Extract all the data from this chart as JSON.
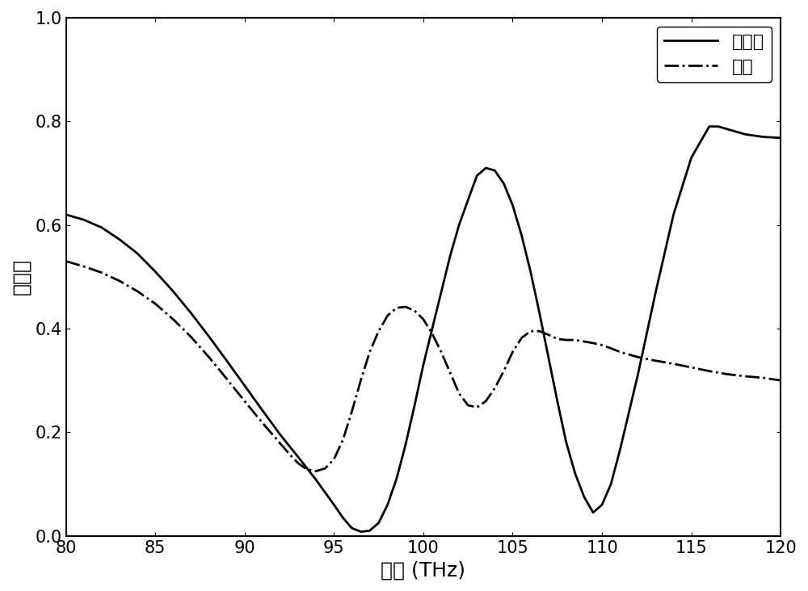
{
  "title": "",
  "xlabel": "频率 (THz)",
  "ylabel": "透过率",
  "xlim": [
    80,
    120
  ],
  "ylim": [
    0,
    1.0
  ],
  "xticks": [
    80,
    85,
    90,
    95,
    100,
    105,
    110,
    115,
    120
  ],
  "yticks": [
    0.0,
    0.2,
    0.4,
    0.6,
    0.8,
    1.0
  ],
  "legend_labels": [
    "非晶态",
    "晶态"
  ],
  "line1_style": "-",
  "line2_style": "-.",
  "line_color": "#000000",
  "line_width": 2.0,
  "background_color": "#ffffff",
  "amorphous_x": [
    80,
    81,
    82,
    83,
    84,
    85,
    86,
    87,
    88,
    89,
    90,
    91,
    92,
    93,
    94,
    95,
    95.5,
    96,
    96.5,
    97,
    97.5,
    98,
    98.5,
    99,
    99.5,
    100,
    100.5,
    101,
    101.5,
    102,
    102.5,
    103,
    103.5,
    104,
    104.5,
    105,
    105.5,
    106,
    106.5,
    107,
    107.5,
    108,
    108.5,
    109,
    109.5,
    110,
    110.5,
    111,
    112,
    113,
    114,
    115,
    116,
    116.5,
    117,
    118,
    119,
    120
  ],
  "amorphous_y": [
    0.62,
    0.61,
    0.595,
    0.572,
    0.545,
    0.51,
    0.472,
    0.43,
    0.385,
    0.338,
    0.29,
    0.242,
    0.195,
    0.152,
    0.108,
    0.06,
    0.035,
    0.015,
    0.008,
    0.01,
    0.025,
    0.06,
    0.11,
    0.175,
    0.25,
    0.33,
    0.4,
    0.47,
    0.54,
    0.6,
    0.648,
    0.695,
    0.71,
    0.705,
    0.68,
    0.638,
    0.58,
    0.51,
    0.43,
    0.345,
    0.26,
    0.18,
    0.12,
    0.075,
    0.045,
    0.06,
    0.1,
    0.165,
    0.31,
    0.47,
    0.62,
    0.73,
    0.79,
    0.79,
    0.785,
    0.775,
    0.77,
    0.768
  ],
  "crystalline_x": [
    80,
    81,
    82,
    83,
    84,
    85,
    86,
    87,
    88,
    89,
    90,
    91,
    92,
    92.5,
    93,
    93.5,
    94,
    94.5,
    95,
    95.5,
    96,
    96.5,
    97,
    97.5,
    98,
    98.5,
    99,
    99.5,
    100,
    100.5,
    101,
    101.5,
    102,
    102.5,
    103,
    103.5,
    104,
    104.5,
    105,
    105.5,
    106,
    106.5,
    107,
    107.5,
    108,
    108.5,
    109,
    109.5,
    110,
    110.5,
    111,
    112,
    113,
    114,
    115,
    116,
    117,
    118,
    119,
    120
  ],
  "crystalline_y": [
    0.53,
    0.52,
    0.508,
    0.492,
    0.472,
    0.448,
    0.418,
    0.384,
    0.345,
    0.303,
    0.26,
    0.218,
    0.178,
    0.158,
    0.14,
    0.128,
    0.125,
    0.13,
    0.148,
    0.185,
    0.24,
    0.3,
    0.355,
    0.395,
    0.425,
    0.44,
    0.442,
    0.435,
    0.418,
    0.39,
    0.355,
    0.315,
    0.275,
    0.252,
    0.248,
    0.26,
    0.285,
    0.318,
    0.355,
    0.382,
    0.395,
    0.395,
    0.388,
    0.38,
    0.378,
    0.378,
    0.375,
    0.372,
    0.368,
    0.362,
    0.355,
    0.345,
    0.338,
    0.332,
    0.325,
    0.318,
    0.312,
    0.308,
    0.305,
    0.3
  ]
}
